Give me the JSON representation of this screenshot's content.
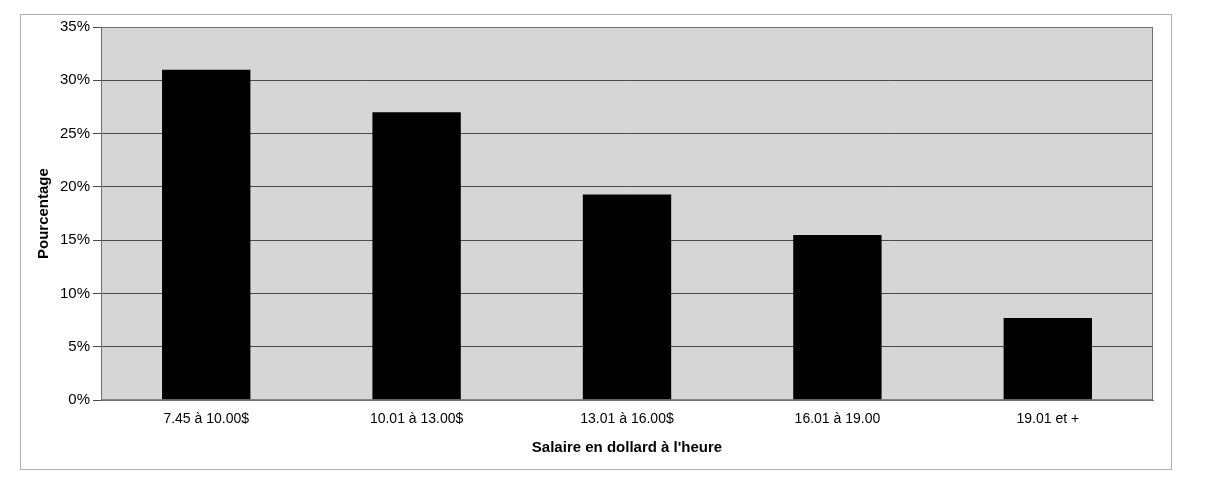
{
  "chart_data": {
    "type": "bar",
    "x_label": "Salaire en dollard à l'heure",
    "y_label": "Pourcentage",
    "categories": [
      "7.45 à 10.00$",
      "10.01 à 13.00$",
      "13.01 à 16.00$",
      "16.01 à 19.00",
      "19.01 et +"
    ],
    "values": [
      31,
      27,
      19.3,
      15.5,
      7.7
    ],
    "color": "#000000",
    "ylim": [
      0,
      35
    ],
    "yticks": [
      {
        "value": 0,
        "label": "0%"
      },
      {
        "value": 5,
        "label": "5%"
      },
      {
        "value": 10,
        "label": "10%"
      },
      {
        "value": 15,
        "label": "15%"
      },
      {
        "value": 20,
        "label": "20%"
      },
      {
        "value": 25,
        "label": "25%"
      },
      {
        "value": 30,
        "label": "30%"
      },
      {
        "value": 35,
        "label": "35%"
      }
    ],
    "grid": true
  }
}
